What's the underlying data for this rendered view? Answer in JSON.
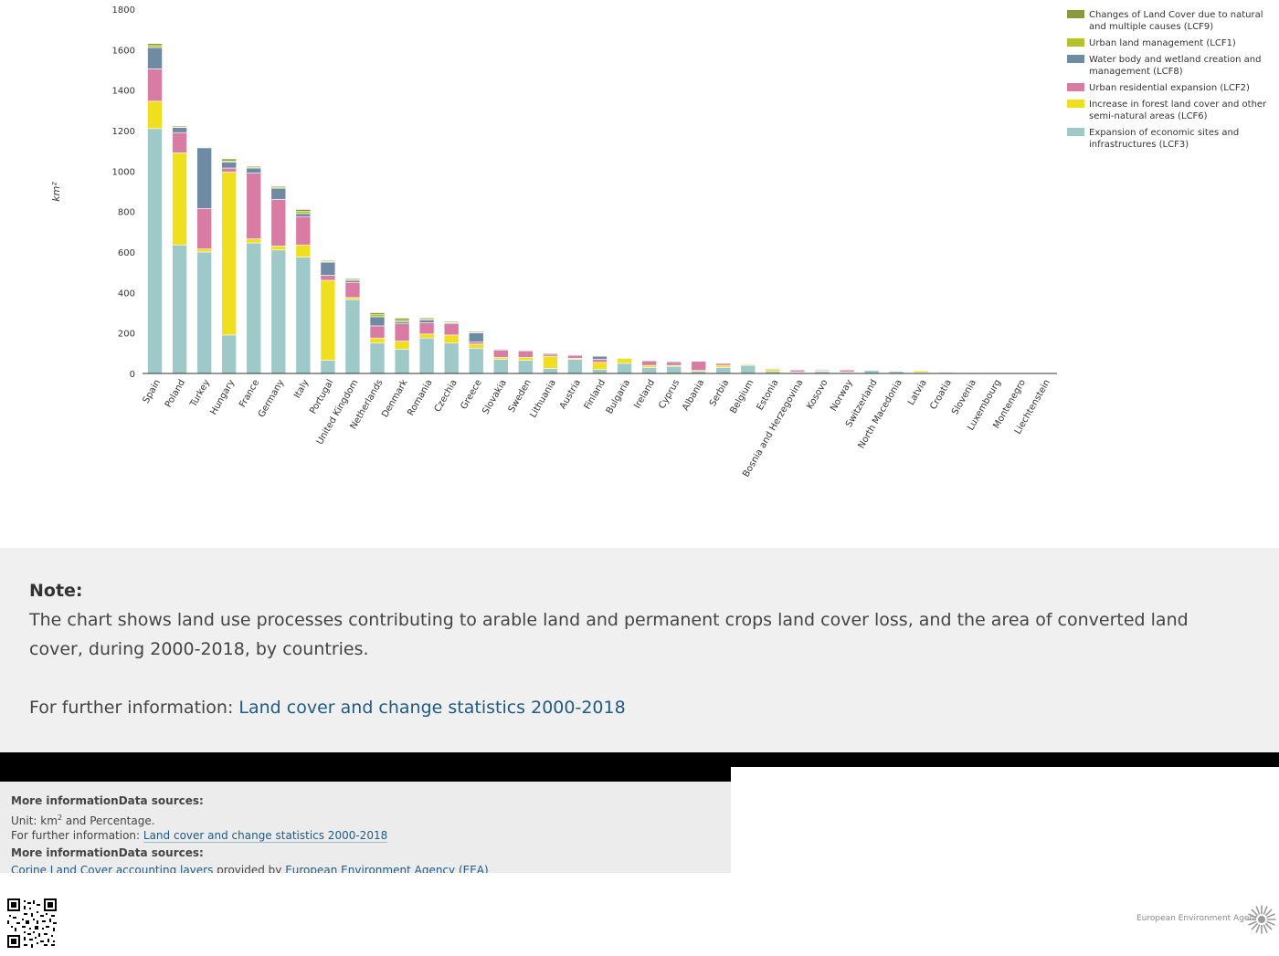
{
  "chart_data": {
    "type": "bar",
    "stacked": true,
    "ylabel": "km²",
    "ylim": [
      0,
      1800
    ],
    "yticks": [
      0,
      200,
      400,
      600,
      800,
      1000,
      1200,
      1400,
      1600,
      1800
    ],
    "legend_position": "top-right",
    "grid": false,
    "categories": [
      "Spain",
      "Poland",
      "Turkey",
      "Hungary",
      "France",
      "Germany",
      "Italy",
      "Portugal",
      "United Kingdom",
      "Netherlands",
      "Denmark",
      "Romania",
      "Czechia",
      "Greece",
      "Slovakia",
      "Sweden",
      "Lithuania",
      "Austria",
      "Finland",
      "Bulgaria",
      "Ireland",
      "Cyprus",
      "Albania",
      "Serbia",
      "Belgium",
      "Estonia",
      "Bosnia and Herzegovina",
      "Kosovo",
      "Norway",
      "Switzerland",
      "North Macedonia",
      "Latvia",
      "Croatia",
      "Slovenia",
      "Luxembourg",
      "Montenegro",
      "Liechtenstein"
    ],
    "series": [
      {
        "name": "Expansion of economic sites and infrastructures (LCF3)",
        "color": "#9fc9c9",
        "values": [
          1210,
          635,
          600,
          190,
          645,
          610,
          575,
          65,
          365,
          150,
          120,
          175,
          150,
          125,
          70,
          65,
          25,
          70,
          20,
          50,
          30,
          35,
          10,
          30,
          40,
          10,
          5,
          10,
          5,
          15,
          10,
          5,
          5,
          3,
          2,
          1,
          0
        ]
      },
      {
        "name": "Increase in forest land cover and other semi-natural areas (LCF6)",
        "color": "#efdf1f",
        "values": [
          135,
          455,
          15,
          805,
          20,
          20,
          60,
          395,
          10,
          25,
          40,
          20,
          40,
          20,
          10,
          15,
          60,
          5,
          35,
          25,
          10,
          5,
          5,
          10,
          5,
          10,
          2,
          2,
          2,
          0,
          2,
          8,
          1,
          1,
          0,
          0,
          0
        ]
      },
      {
        "name": "Urban residential expansion (LCF2)",
        "color": "#d97ca3",
        "values": [
          160,
          100,
          200,
          20,
          325,
          230,
          140,
          25,
          75,
          60,
          85,
          55,
          55,
          10,
          35,
          30,
          10,
          15,
          15,
          2,
          20,
          15,
          45,
          10,
          2,
          5,
          10,
          5,
          10,
          0,
          3,
          0,
          3,
          1,
          1,
          0,
          0
        ]
      },
      {
        "name": "Water body and wetland creation and management (LCF8)",
        "color": "#6e8ba3",
        "values": [
          105,
          25,
          300,
          30,
          25,
          55,
          15,
          65,
          10,
          45,
          10,
          15,
          5,
          45,
          5,
          5,
          5,
          2,
          15,
          2,
          5,
          5,
          2,
          2,
          3,
          2,
          2,
          2,
          2,
          3,
          2,
          1,
          1,
          1,
          1,
          1,
          1
        ]
      },
      {
        "name": "Urban land management (LCF1)",
        "color": "#b6c22a",
        "values": [
          10,
          3,
          3,
          5,
          5,
          5,
          10,
          3,
          5,
          10,
          8,
          5,
          3,
          2,
          2,
          2,
          2,
          2,
          2,
          2,
          2,
          2,
          2,
          2,
          2,
          2,
          1,
          1,
          1,
          1,
          1,
          1,
          1,
          1,
          0,
          0,
          0
        ]
      },
      {
        "name": "Changes of Land Cover due to natural and multiple causes (LCF9)",
        "color": "#8a9a3a",
        "values": [
          10,
          5,
          3,
          10,
          5,
          5,
          10,
          5,
          5,
          10,
          10,
          5,
          5,
          5,
          2,
          2,
          2,
          2,
          2,
          2,
          2,
          2,
          2,
          2,
          2,
          2,
          1,
          1,
          1,
          1,
          2,
          1,
          1,
          1,
          1,
          0,
          0
        ]
      }
    ],
    "legend_order": [
      5,
      4,
      3,
      2,
      1,
      0
    ]
  },
  "note": {
    "heading": "Note:",
    "text": "The chart shows land use processes contributing to arable land and permanent crops land cover loss, and the area of converted land cover, during 2000-2018, by countries.",
    "further_prefix": "For further information: ",
    "further_link": "Land cover and change statistics 2000-2018"
  },
  "info": {
    "heading1": "More informationData sources:",
    "unit_prefix": "Unit: km",
    "unit_sup": "2",
    "unit_suffix": " and Percentage.",
    "further_prefix": "For further information: ",
    "further_link": "Land cover and change statistics 2000-2018",
    "heading2": "More informationData sources:",
    "source_link": "Corine Land Cover accounting layers",
    "source_mid": " provided by ",
    "source_org": "European Environment Agency (EEA)"
  },
  "footer": {
    "agency": "European Environment Agency"
  }
}
